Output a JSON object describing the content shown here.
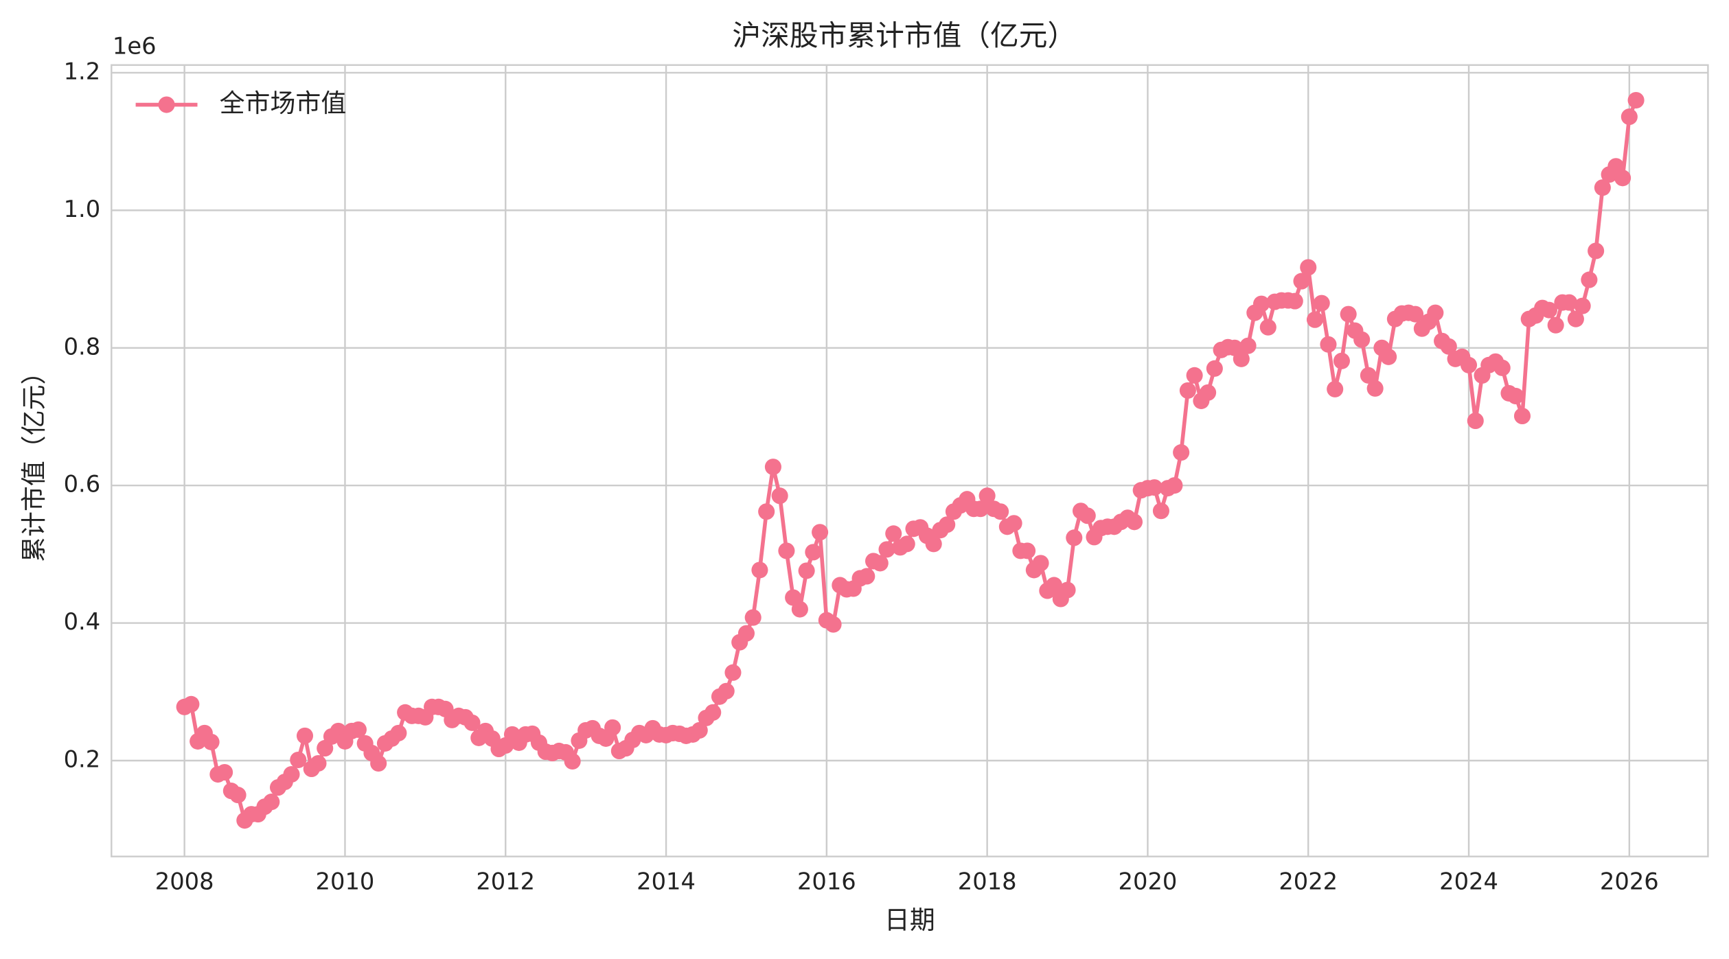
{
  "chart_data": {
    "type": "line",
    "title": "沪深股市累计市值（亿元）",
    "x_label": "日期",
    "y_label": "累计市值（亿元）",
    "y_offset_label": "1e6",
    "legend": "upper left",
    "grid": true,
    "xlim": [
      2007.09,
      2026.98
    ],
    "xticks": [
      2008,
      2010,
      2012,
      2014,
      2016,
      2018,
      2020,
      2022,
      2024,
      2026
    ],
    "ylim": [
      60600,
      1211200
    ],
    "yticks": [
      {
        "value": 200000,
        "label": "0.2"
      },
      {
        "value": 400000,
        "label": "0.4"
      },
      {
        "value": 600000,
        "label": "0.6"
      },
      {
        "value": 800000,
        "label": "0.8"
      },
      {
        "value": 1000000,
        "label": "1.0"
      },
      {
        "value": 1200000,
        "label": "1.2"
      }
    ],
    "x": [
      "2008-01",
      "2008-02",
      "2008-03",
      "2008-04",
      "2008-05",
      "2008-06",
      "2008-07",
      "2008-08",
      "2008-09",
      "2008-10",
      "2008-11",
      "2008-12",
      "2009-01",
      "2009-02",
      "2009-03",
      "2009-04",
      "2009-05",
      "2009-06",
      "2009-07",
      "2009-08",
      "2009-09",
      "2009-10",
      "2009-11",
      "2009-12",
      "2010-01",
      "2010-02",
      "2010-03",
      "2010-04",
      "2010-05",
      "2010-06",
      "2010-07",
      "2010-08",
      "2010-09",
      "2010-10",
      "2010-11",
      "2010-12",
      "2011-01",
      "2011-02",
      "2011-03",
      "2011-04",
      "2011-05",
      "2011-06",
      "2011-07",
      "2011-08",
      "2011-09",
      "2011-10",
      "2011-11",
      "2011-12",
      "2012-01",
      "2012-02",
      "2012-03",
      "2012-04",
      "2012-05",
      "2012-06",
      "2012-07",
      "2012-08",
      "2012-09",
      "2012-10",
      "2012-11",
      "2012-12",
      "2013-01",
      "2013-02",
      "2013-03",
      "2013-04",
      "2013-05",
      "2013-06",
      "2013-07",
      "2013-08",
      "2013-09",
      "2013-10",
      "2013-11",
      "2013-12",
      "2014-01",
      "2014-02",
      "2014-03",
      "2014-04",
      "2014-05",
      "2014-06",
      "2014-07",
      "2014-08",
      "2014-09",
      "2014-10",
      "2014-11",
      "2014-12",
      "2015-01",
      "2015-02",
      "2015-03",
      "2015-04",
      "2015-05",
      "2015-06",
      "2015-07",
      "2015-08",
      "2015-09",
      "2015-10",
      "2015-11",
      "2015-12",
      "2016-01",
      "2016-02",
      "2016-03",
      "2016-04",
      "2016-05",
      "2016-06",
      "2016-07",
      "2016-08",
      "2016-09",
      "2016-10",
      "2016-11",
      "2016-12",
      "2017-01",
      "2017-02",
      "2017-03",
      "2017-04",
      "2017-05",
      "2017-06",
      "2017-07",
      "2017-08",
      "2017-09",
      "2017-10",
      "2017-11",
      "2017-12",
      "2018-01",
      "2018-02",
      "2018-03",
      "2018-04",
      "2018-05",
      "2018-06",
      "2018-07",
      "2018-08",
      "2018-09",
      "2018-10",
      "2018-11",
      "2018-12",
      "2019-01",
      "2019-02",
      "2019-03",
      "2019-04",
      "2019-05",
      "2019-06",
      "2019-07",
      "2019-08",
      "2019-09",
      "2019-10",
      "2019-11",
      "2019-12",
      "2020-01",
      "2020-02",
      "2020-03",
      "2020-04",
      "2020-05",
      "2020-06",
      "2020-07",
      "2020-08",
      "2020-09",
      "2020-10",
      "2020-11",
      "2020-12",
      "2021-01",
      "2021-02",
      "2021-03",
      "2021-04",
      "2021-05",
      "2021-06",
      "2021-07",
      "2021-08",
      "2021-09",
      "2021-10",
      "2021-11",
      "2021-12",
      "2022-01",
      "2022-02",
      "2022-03",
      "2022-04",
      "2022-05",
      "2022-06",
      "2022-07",
      "2022-08",
      "2022-09",
      "2022-10",
      "2022-11",
      "2022-12",
      "2023-01",
      "2023-02",
      "2023-03",
      "2023-04",
      "2023-05",
      "2023-06",
      "2023-07",
      "2023-08",
      "2023-09",
      "2023-10",
      "2023-11",
      "2023-12",
      "2024-01",
      "2024-02",
      "2024-03",
      "2024-04",
      "2024-05",
      "2024-06",
      "2024-07",
      "2024-08",
      "2024-09",
      "2024-10",
      "2024-11",
      "2024-12",
      "2025-01",
      "2025-02",
      "2025-03",
      "2025-04",
      "2025-05",
      "2025-06",
      "2025-07",
      "2025-08",
      "2025-09",
      "2025-10",
      "2025-11",
      "2025-12",
      "2026-01",
      "2026-02"
    ],
    "series": [
      {
        "name": "全市场市值",
        "color": "#f4728e",
        "values": [
          278000,
          282000,
          228000,
          240000,
          227000,
          180000,
          183000,
          156000,
          150000,
          113000,
          122000,
          122000,
          133000,
          140000,
          161000,
          169000,
          180000,
          201000,
          236000,
          188000,
          196000,
          218000,
          235000,
          243000,
          228000,
          243000,
          245000,
          225000,
          211000,
          196000,
          225000,
          232000,
          240000,
          270000,
          265000,
          265000,
          263000,
          278000,
          278000,
          275000,
          259000,
          265000,
          263000,
          255000,
          233000,
          243000,
          232000,
          217000,
          222000,
          238000,
          226000,
          238000,
          239000,
          226000,
          213000,
          211000,
          214000,
          212000,
          199000,
          229000,
          244000,
          247000,
          236000,
          232000,
          248000,
          214000,
          218000,
          230000,
          240000,
          237000,
          247000,
          238000,
          237000,
          240000,
          239000,
          236000,
          238000,
          244000,
          262000,
          270000,
          293000,
          301000,
          328000,
          372000,
          385000,
          408000,
          477000,
          562000,
          627000,
          585000,
          505000,
          437000,
          420000,
          476000,
          503000,
          532000,
          404000,
          398000,
          455000,
          449000,
          450000,
          465000,
          468000,
          490000,
          487000,
          507000,
          530000,
          510000,
          515000,
          537000,
          539000,
          527000,
          515000,
          535000,
          543000,
          562000,
          571000,
          580000,
          566000,
          566000,
          585000,
          566000,
          562000,
          540000,
          545000,
          505000,
          505000,
          477000,
          487000,
          447000,
          455000,
          435000,
          448000,
          524000,
          563000,
          556000,
          525000,
          538000,
          540000,
          540000,
          547000,
          553000,
          547000,
          593000,
          596000,
          597000,
          563000,
          596000,
          600000,
          648000,
          738000,
          760000,
          723000,
          735000,
          770000,
          797000,
          801000,
          800000,
          784000,
          803000,
          851000,
          864000,
          830000,
          867000,
          869000,
          869000,
          868000,
          897000,
          917000,
          841000,
          865000,
          805000,
          740000,
          781000,
          849000,
          825000,
          812000,
          760000,
          741000,
          800000,
          787000,
          842000,
          850000,
          851000,
          849000,
          828000,
          838000,
          851000,
          810000,
          802000,
          784000,
          787000,
          775000,
          694000,
          760000,
          775000,
          780000,
          771000,
          734000,
          730000,
          701000,
          842000,
          847000,
          858000,
          855000,
          833000,
          866000,
          866000,
          842000,
          861000,
          899000,
          941000,
          1033000,
          1052000,
          1064000,
          1047000,
          1136000,
          1160000
        ]
      }
    ]
  }
}
